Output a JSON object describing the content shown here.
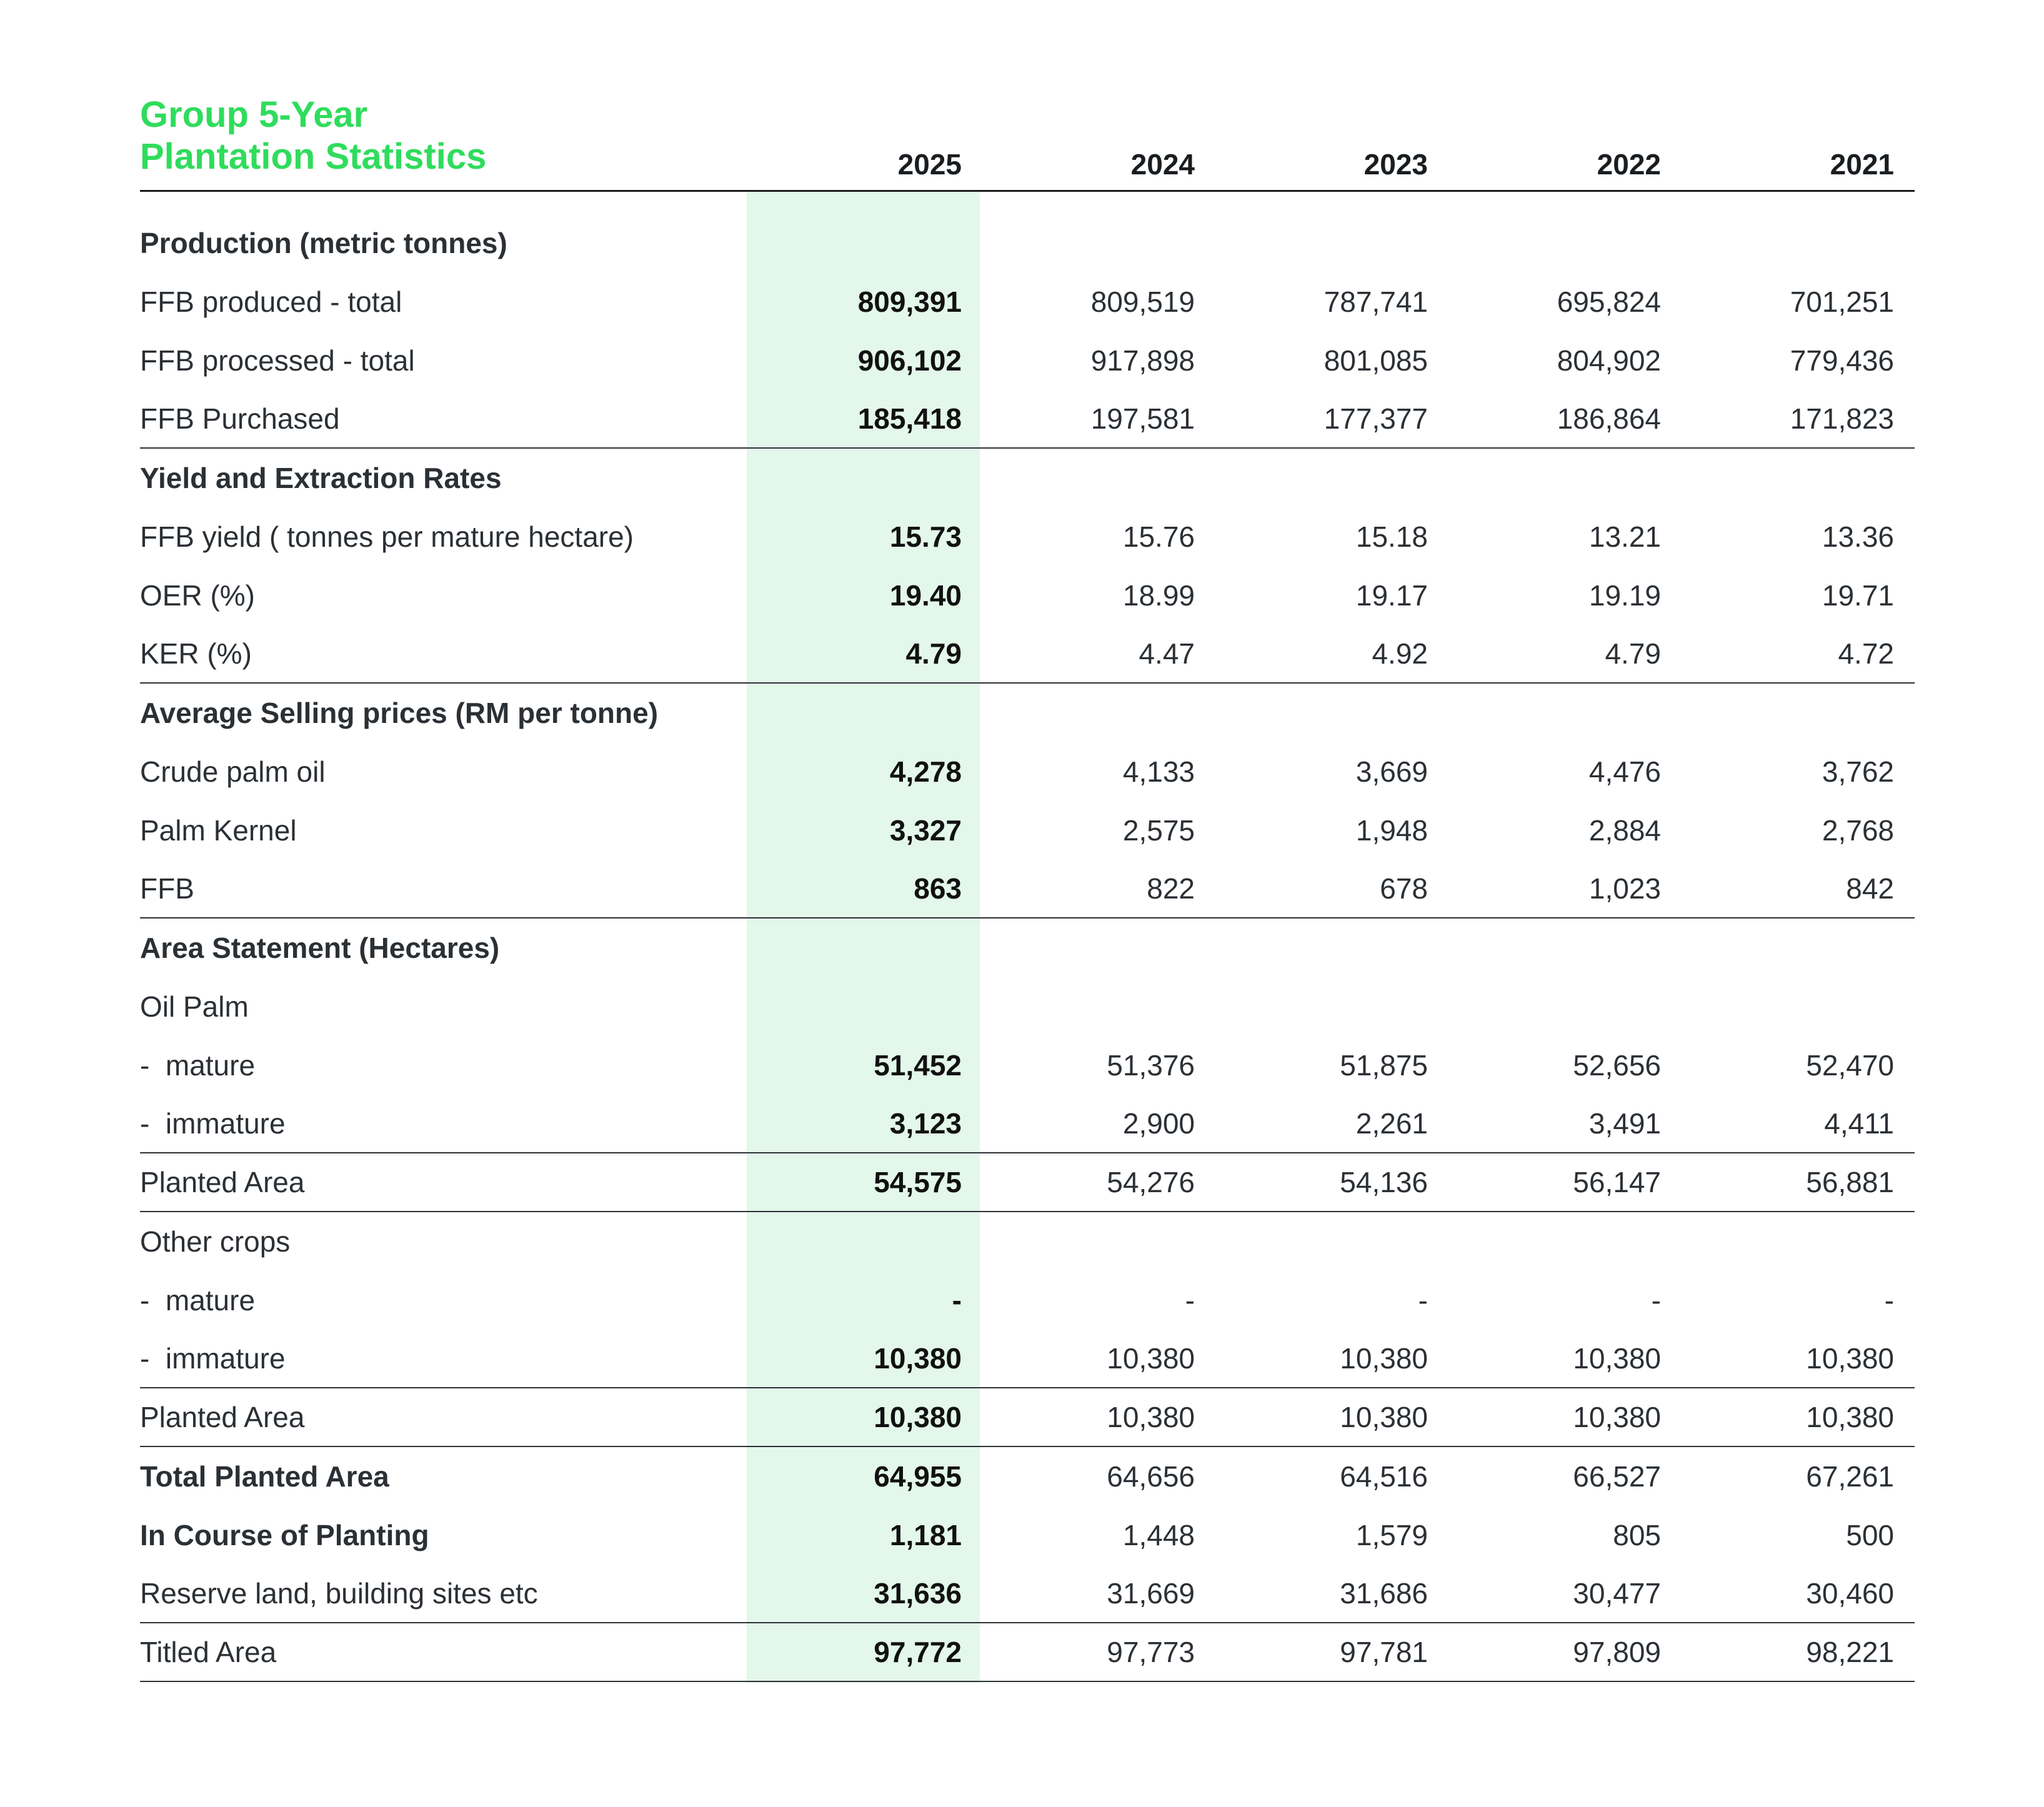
{
  "title": {
    "line1": "Group 5-Year",
    "line2": "Plantation Statistics"
  },
  "years": [
    "2025",
    "2024",
    "2023",
    "2022",
    "2021"
  ],
  "colors": {
    "title": "#2fdc5c",
    "highlight": "#e3f7ea"
  },
  "rows": [
    {
      "label": "Production (metric tonnes)",
      "heading": true,
      "values": []
    },
    {
      "label": "FFB produced - total",
      "values": [
        "809,391",
        "809,519",
        "787,741",
        "695,824",
        "701,251"
      ]
    },
    {
      "label": "FFB processed - total",
      "values": [
        "906,102",
        "917,898",
        "801,085",
        "804,902",
        "779,436"
      ]
    },
    {
      "label": "FFB Purchased",
      "line": true,
      "values": [
        "185,418",
        "197,581",
        "177,377",
        "186,864",
        "171,823"
      ]
    },
    {
      "label": "Yield and Extraction Rates",
      "heading": true,
      "values": []
    },
    {
      "label": "FFB yield ( tonnes per mature hectare)",
      "values": [
        "15.73",
        "15.76",
        "15.18",
        "13.21",
        "13.36"
      ]
    },
    {
      "label": "OER (%)",
      "values": [
        "19.40",
        "18.99",
        "19.17",
        "19.19",
        "19.71"
      ]
    },
    {
      "label": "KER (%)",
      "line": true,
      "values": [
        "4.79",
        "4.47",
        "4.92",
        "4.79",
        "4.72"
      ]
    },
    {
      "label": "Average Selling prices (RM per tonne)",
      "heading": true,
      "values": []
    },
    {
      "label": "Crude palm oil",
      "values": [
        "4,278",
        "4,133",
        "3,669",
        "4,476",
        "3,762"
      ]
    },
    {
      "label": "Palm Kernel",
      "values": [
        "3,327",
        "2,575",
        "1,948",
        "2,884",
        "2,768"
      ]
    },
    {
      "label": "FFB",
      "line": true,
      "values": [
        "863",
        "822",
        "678",
        "1,023",
        "842"
      ]
    },
    {
      "label": "Area Statement (Hectares)",
      "heading": true,
      "values": []
    },
    {
      "label": "Oil Palm",
      "values": []
    },
    {
      "label": "-  mature",
      "values": [
        "51,452",
        "51,376",
        "51,875",
        "52,656",
        "52,470"
      ]
    },
    {
      "label": "-  immature",
      "line": true,
      "values": [
        "3,123",
        "2,900",
        "2,261",
        "3,491",
        "4,411"
      ]
    },
    {
      "label": "Planted Area",
      "line": true,
      "values": [
        "54,575",
        "54,276",
        "54,136",
        "56,147",
        "56,881"
      ]
    },
    {
      "label": "Other crops",
      "values": []
    },
    {
      "label": "-  mature",
      "values": [
        "-",
        "-",
        "-",
        "-",
        "-"
      ]
    },
    {
      "label": "-  immature",
      "line": true,
      "values": [
        "10,380",
        "10,380",
        "10,380",
        "10,380",
        "10,380"
      ]
    },
    {
      "label": "Planted Area",
      "line": true,
      "values": [
        "10,380",
        "10,380",
        "10,380",
        "10,380",
        "10,380"
      ]
    },
    {
      "label": "Total Planted Area",
      "heading": true,
      "values": [
        "64,955",
        "64,656",
        "64,516",
        "66,527",
        "67,261"
      ]
    },
    {
      "label": "In Course of Planting",
      "heading": true,
      "values": [
        "1,181",
        "1,448",
        "1,579",
        "805",
        "500"
      ]
    },
    {
      "label": "Reserve land, building sites etc",
      "line": true,
      "values": [
        "31,636",
        "31,669",
        "31,686",
        "30,477",
        "30,460"
      ]
    },
    {
      "label": "Titled Area",
      "line": true,
      "values": [
        "97,772",
        "97,773",
        "97,781",
        "97,809",
        "98,221"
      ]
    }
  ]
}
